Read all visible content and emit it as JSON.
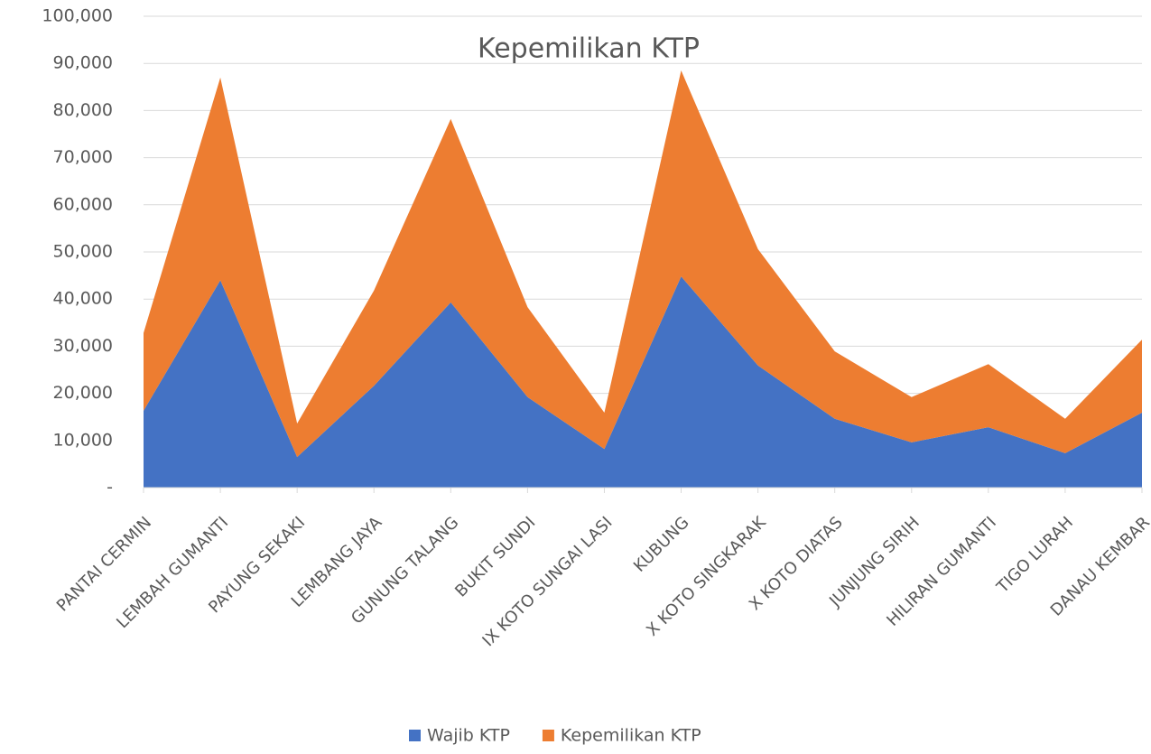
{
  "chart_data": {
    "type": "area",
    "stacked": true,
    "title": "Kepemilikan KTP",
    "categories": [
      "PANTAI CERMIN",
      "LEMBAH GUMANTI",
      "PAYUNG SEKAKI",
      "LEMBANG JAYA",
      "GUNUNG TALANG",
      "BUKIT SUNDI",
      "IX KOTO SUNGAI LASI",
      "KUBUNG",
      "X KOTO SINGKARAK",
      "X KOTO DIATAS",
      "JUNJUNG SIRIH",
      "HILIRAN GUMANTI",
      "TIGO LURAH",
      "DANAU KEMBAR"
    ],
    "series": [
      {
        "name": "Wajib KTP",
        "color": "#4472c4",
        "values": [
          16300,
          44000,
          6500,
          21600,
          39300,
          19200,
          8200,
          44800,
          25900,
          14600,
          9600,
          12800,
          7300,
          15900
        ]
      },
      {
        "name": "Kepemilikan KTP",
        "color": "#ed7d31",
        "values": [
          16500,
          43000,
          7100,
          20200,
          38900,
          19100,
          7700,
          43700,
          24700,
          14300,
          9600,
          13400,
          7300,
          15500
        ]
      }
    ],
    "ylim": [
      0,
      100000
    ],
    "yticks": [
      {
        "value": 0,
        "label": "-"
      },
      {
        "value": 10000,
        "label": "10,000"
      },
      {
        "value": 20000,
        "label": "20,000"
      },
      {
        "value": 30000,
        "label": "30,000"
      },
      {
        "value": 40000,
        "label": "40,000"
      },
      {
        "value": 50000,
        "label": "50,000"
      },
      {
        "value": 60000,
        "label": "60,000"
      },
      {
        "value": 70000,
        "label": "70,000"
      },
      {
        "value": 80000,
        "label": "80,000"
      },
      {
        "value": 90000,
        "label": "90,000"
      },
      {
        "value": 100000,
        "label": "100,000"
      }
    ],
    "grid": true,
    "legend": "bottom"
  }
}
